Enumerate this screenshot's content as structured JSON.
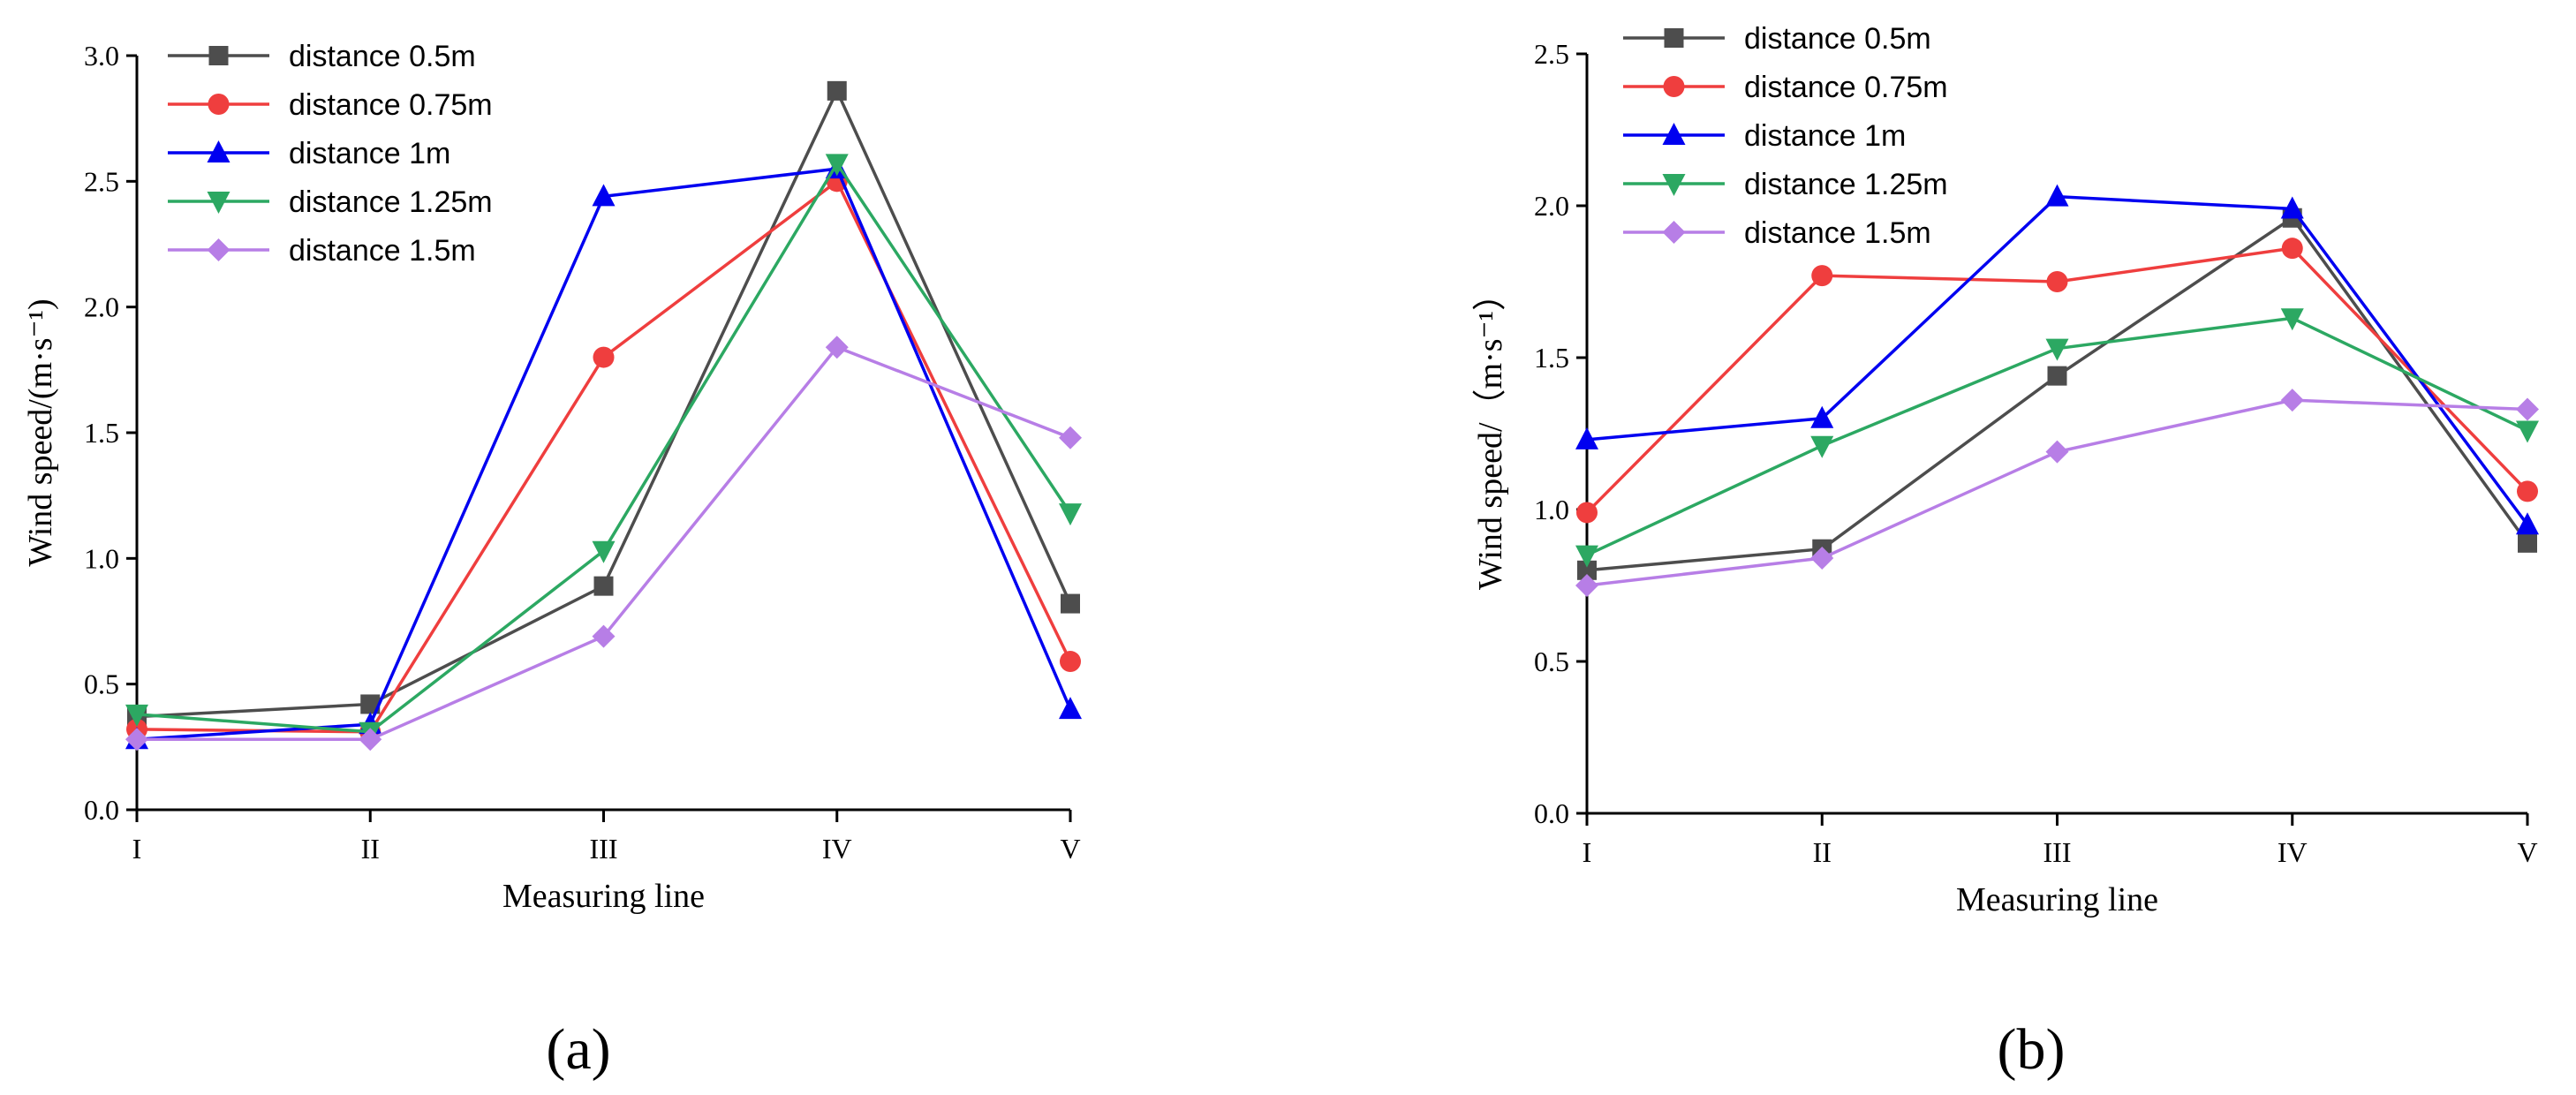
{
  "chart_data": [
    {
      "type": "line",
      "panel_label": "(a)",
      "xlabel": "Measuring line",
      "ylabel": "Wind speed/(m·s⁻¹)",
      "categories": [
        "I",
        "II",
        "III",
        "IV",
        "V"
      ],
      "ylim": [
        0,
        3.0
      ],
      "yticks": [
        "0.0",
        "0.5",
        "1.0",
        "1.5",
        "2.0",
        "2.5",
        "3.0"
      ],
      "legend_position": "top-left",
      "series": [
        {
          "name": "distance 0.5m",
          "color": "#4d4d4d",
          "marker": "square",
          "values": [
            0.37,
            0.42,
            0.89,
            2.86,
            0.82
          ]
        },
        {
          "name": "distance 0.75m",
          "color": "#ef3e3e",
          "marker": "circle",
          "values": [
            0.32,
            0.31,
            1.8,
            2.5,
            0.59
          ]
        },
        {
          "name": "distance 1m",
          "color": "#0000f0",
          "marker": "triangle-up",
          "values": [
            0.28,
            0.34,
            2.44,
            2.55,
            0.4
          ]
        },
        {
          "name": "distance 1.25m",
          "color": "#2ca862",
          "marker": "triangle-down",
          "values": [
            0.38,
            0.31,
            1.03,
            2.57,
            1.18
          ]
        },
        {
          "name": "distance 1.5m",
          "color": "#b77ee6",
          "marker": "diamond",
          "values": [
            0.28,
            0.28,
            0.69,
            1.84,
            1.48
          ]
        }
      ]
    },
    {
      "type": "line",
      "panel_label": "(b)",
      "xlabel": "Measuring line",
      "ylabel": "Wind speed/（m·s⁻¹）",
      "categories": [
        "I",
        "II",
        "III",
        "IV",
        "V"
      ],
      "ylim": [
        0,
        2.5
      ],
      "yticks": [
        "0.0",
        "0.5",
        "1.0",
        "1.5",
        "2.0",
        "2.5"
      ],
      "legend_position": "top-left",
      "series": [
        {
          "name": "distance  0.5m",
          "color": "#4d4d4d",
          "marker": "square",
          "values": [
            0.8,
            0.87,
            1.44,
            1.96,
            0.89
          ]
        },
        {
          "name": "distance  0.75m",
          "color": "#ef3e3e",
          "marker": "circle",
          "values": [
            0.99,
            1.77,
            1.75,
            1.86,
            1.06
          ]
        },
        {
          "name": "distance  1m",
          "color": "#0000f0",
          "marker": "triangle-up",
          "values": [
            1.23,
            1.3,
            2.03,
            1.99,
            0.95
          ]
        },
        {
          "name": "distance  1.25m",
          "color": "#2ca862",
          "marker": "triangle-down",
          "values": [
            0.85,
            1.21,
            1.53,
            1.63,
            1.26
          ]
        },
        {
          "name": "distance  1.5m",
          "color": "#b77ee6",
          "marker": "diamond",
          "values": [
            0.75,
            0.84,
            1.19,
            1.36,
            1.33
          ]
        }
      ]
    }
  ]
}
